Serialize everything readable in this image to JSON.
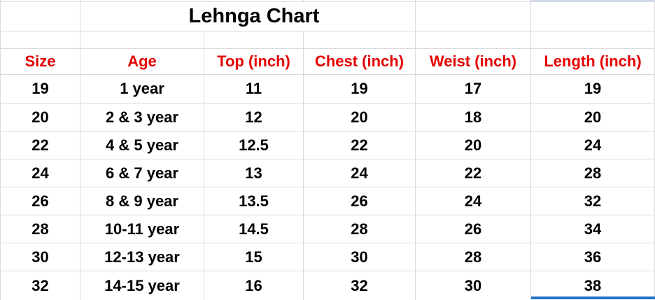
{
  "title": "Lehnga Chart",
  "table": {
    "headers": [
      "Size",
      "Age",
      "Top (inch)",
      "Chest (inch)",
      "Weist (inch)",
      "Length (inch)"
    ],
    "rows": [
      [
        "19",
        "1 year",
        "11",
        "19",
        "17",
        "19"
      ],
      [
        "20",
        "2 & 3 year",
        "12",
        "20",
        "18",
        "20"
      ],
      [
        "22",
        "4 & 5 year",
        "12.5",
        "22",
        "20",
        "24"
      ],
      [
        "24",
        "6 & 7 year",
        "13",
        "24",
        "22",
        "28"
      ],
      [
        "26",
        "8 & 9 year",
        "13.5",
        "26",
        "24",
        "32"
      ],
      [
        "28",
        "10-11 year",
        "14.5",
        "28",
        "26",
        "34"
      ],
      [
        "30",
        "12-13 year",
        "15",
        "30",
        "28",
        "36"
      ],
      [
        "32",
        "14-15 year",
        "16",
        "32",
        "30",
        "38"
      ]
    ]
  },
  "colors": {
    "background": "#ffffff",
    "gridline": "#dadada",
    "body_text": "#000000",
    "header_text": "#e60000",
    "selection_border": "#2373c3",
    "selection_fill": "#ccd8eb"
  }
}
